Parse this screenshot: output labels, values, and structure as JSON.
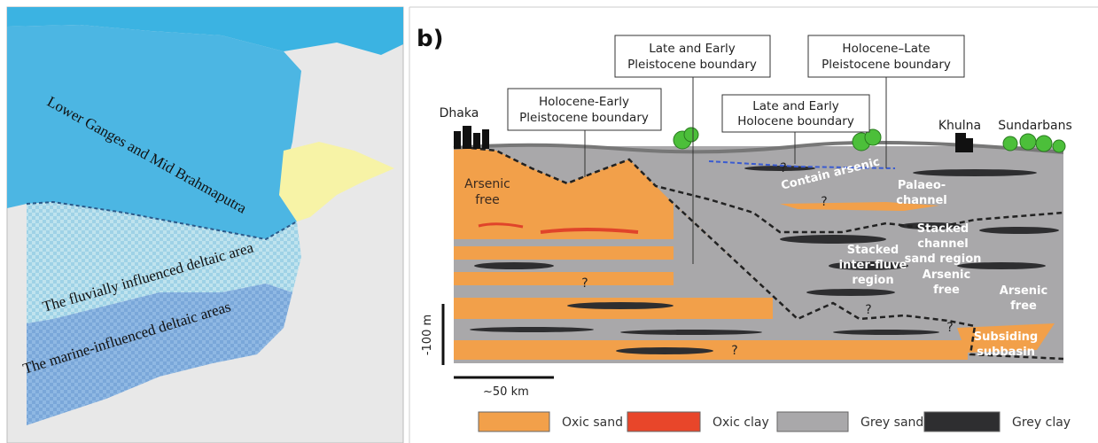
{
  "map": {
    "labels": [
      "Lower Ganges and Mid Brahmaputra",
      "The fluvially influenced deltaic area",
      "The marine-influenced deltaic areas"
    ]
  },
  "section": {
    "panel_label": "b)",
    "boundaries": [
      {
        "lines": [
          "Late and Early",
          "Pleistocene boundary"
        ]
      },
      {
        "lines": [
          "Holocene–Late",
          "Pleistocene boundary"
        ]
      },
      {
        "lines": [
          "Holocene-Early",
          "Pleistocene boundary"
        ]
      },
      {
        "lines": [
          "Late and Early",
          "Holocene boundary"
        ]
      }
    ],
    "places": [
      "Dhaka",
      "Khulna",
      "Sundarbans"
    ],
    "annotations": [
      {
        "lines": [
          "Arsenic",
          "free"
        ]
      },
      {
        "lines": [
          "Contain arsenic"
        ]
      },
      {
        "lines": [
          "Palaeo-",
          "channel"
        ]
      },
      {
        "lines": [
          "Stacked",
          "channel",
          "sand region"
        ]
      },
      {
        "lines": [
          "Stacked",
          "inter-fluve",
          "region"
        ]
      },
      {
        "lines": [
          "Arsenic",
          "free"
        ]
      },
      {
        "lines": [
          "Arsenic",
          "free"
        ]
      },
      {
        "lines": [
          "Subsiding",
          "subbasin"
        ]
      }
    ],
    "question_marks": [
      "?",
      "?",
      "?",
      "?",
      "?",
      "?"
    ],
    "scale": {
      "depth": "-100 m",
      "distance": "~50 km"
    }
  },
  "legend": [
    "Oxic sand",
    "Oxic clay",
    "Grey sand",
    "Grey clay"
  ]
}
